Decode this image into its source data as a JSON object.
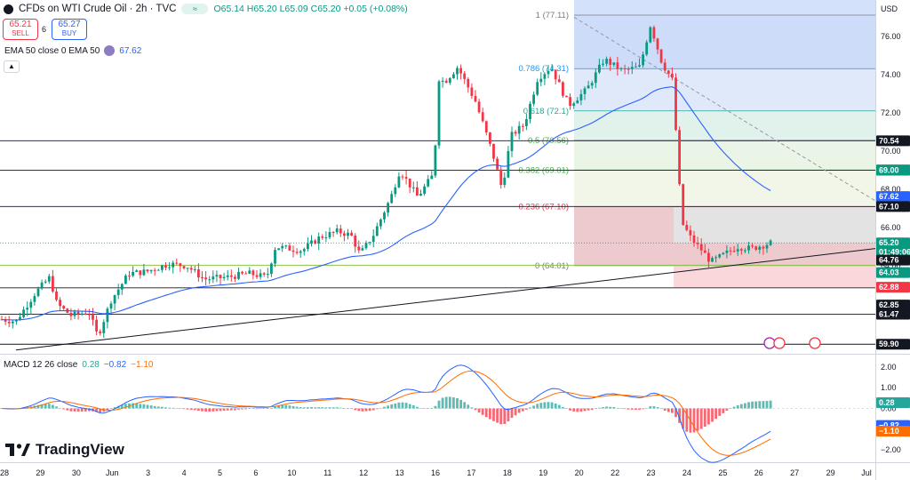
{
  "header": {
    "symbol": "CFDs on WTI Crude Oil · 2h · TVC",
    "ohlc": "O65.14 H65.20 L65.09 C65.20 +0.05 (+0.08%)",
    "badge": "≈"
  },
  "trade": {
    "sell_price": "65.21",
    "sell_label": "SELL",
    "spread": "6",
    "buy_price": "65.27",
    "buy_label": "BUY"
  },
  "ema_legend": {
    "label": "EMA 50 close 0 EMA 50",
    "value": "67.62"
  },
  "macd_legend": {
    "label": "MACD 12 26 close",
    "hist": "0.28",
    "macd": "−0.82",
    "signal": "−1.10"
  },
  "brand": "TradingView",
  "currency": "USD",
  "colors": {
    "up": "#089981",
    "down": "#f23645",
    "ema": "#2962ff",
    "macd": "#2962ff",
    "signal": "#ff6d00"
  },
  "chart_data": {
    "type": "candlestick",
    "x_ticks": [
      "28",
      "29",
      "30",
      "Jun",
      "3",
      "4",
      "5",
      "6",
      "10",
      "11",
      "12",
      "13",
      "16",
      "17",
      "18",
      "19",
      "20",
      "22",
      "23",
      "24",
      "25",
      "26",
      "27",
      "29",
      "Jul"
    ],
    "y_ticks": [
      "76.00",
      "74.00",
      "72.00",
      "70.00",
      "68.00",
      "66.00",
      "64.00",
      "62.00"
    ],
    "ylim": [
      59.4,
      77.9
    ],
    "fib_levels": [
      {
        "label": "1 (77.11)",
        "value": 77.11
      },
      {
        "label": "0.786 (74.31)",
        "value": 74.31
      },
      {
        "label": "0.618 (72.1)",
        "value": 72.1
      },
      {
        "label": "0.5 (70.56)",
        "value": 70.56
      },
      {
        "label": "0.382 (69.01)",
        "value": 69.01
      },
      {
        "label": "0.236 (67.10)",
        "value": 67.1
      },
      {
        "label": "0 (64.01)",
        "value": 64.01
      }
    ],
    "horizontal_levels": [
      70.54,
      69.0,
      67.1,
      62.85,
      61.47,
      59.9
    ],
    "price_tags": [
      {
        "label": "70.54",
        "value": 70.54,
        "color": "#131722"
      },
      {
        "label": "69.01",
        "value": 69.01,
        "color": "#131722"
      },
      {
        "label": "69.00",
        "value": 69.0,
        "color": "#089981"
      },
      {
        "label": "67.62",
        "value": 67.62,
        "color": "#2962ff"
      },
      {
        "label": "67.10",
        "value": 67.1,
        "color": "#131722"
      },
      {
        "label": "65.20",
        "value": 65.2,
        "color": "#089981"
      },
      {
        "label": "01:49:06",
        "value": 64.72,
        "color": "#089981"
      },
      {
        "label": "64.76",
        "value": 64.3,
        "color": "#131722"
      },
      {
        "label": "64.03",
        "value": 63.65,
        "color": "#089981"
      },
      {
        "label": "62.88",
        "value": 62.88,
        "color": "#f23645"
      },
      {
        "label": "62.85",
        "value": 61.95,
        "color": "#131722"
      },
      {
        "label": "61.47",
        "value": 61.47,
        "color": "#131722"
      },
      {
        "label": "59.90",
        "value": 59.9,
        "color": "#131722"
      }
    ],
    "current_price": 65.2,
    "ema_current": 67.62,
    "macd_axis": [
      "2.00",
      "1.00",
      "0.00",
      "−1.00",
      "−2.00"
    ],
    "macd_ylim": [
      -2.6,
      2.6
    ],
    "macd_tags": [
      {
        "label": "0.28",
        "value": 0.28,
        "color": "#26a69a"
      },
      {
        "label": "−0.82",
        "value": -0.82,
        "color": "#2962ff"
      },
      {
        "label": "−1.10",
        "value": -1.1,
        "color": "#ff6d00"
      }
    ]
  }
}
